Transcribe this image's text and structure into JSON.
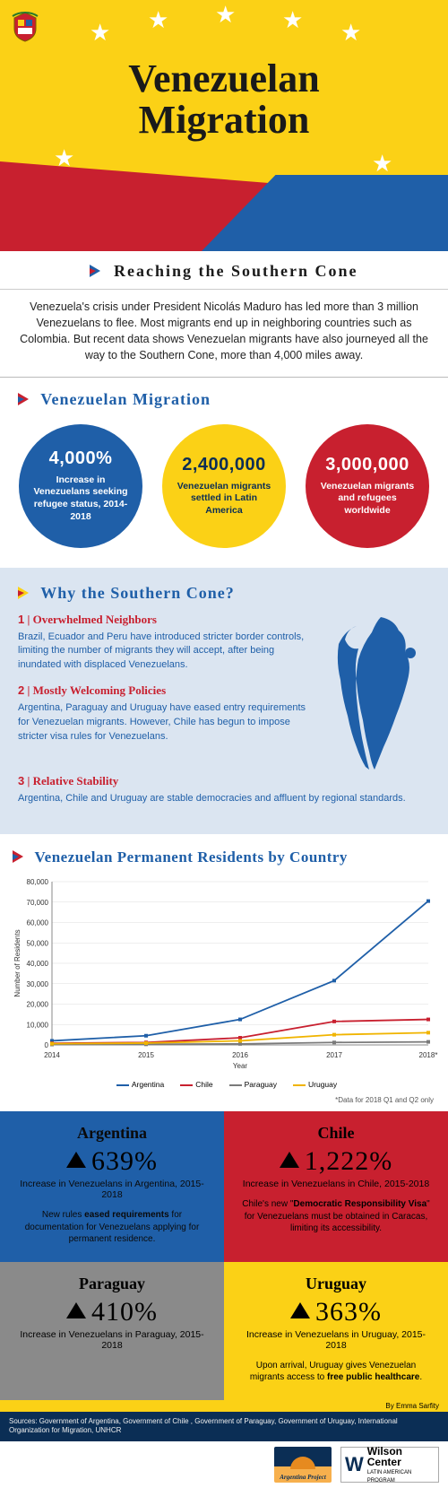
{
  "header": {
    "title_line1": "Venezuelan",
    "title_line2": "Migration",
    "subtitle": "Reaching the Southern Cone"
  },
  "intro": "Venezuela's crisis under President Nicolás Maduro has led more than 3 million Venezuelans to flee. Most migrants end up in neighboring countries such as Colombia. But recent data shows Venezuelan migrants have also journeyed all the way to the Southern Cone, more than 4,000 miles away.",
  "migration_section_title": "Venezuelan Migration",
  "circles": [
    {
      "value": "4,000%",
      "label": "Increase in Venezuelans seeking refugee status, 2014-2018",
      "bg": "#1f5fa8",
      "fg": "#ffffff"
    },
    {
      "value": "2,400,000",
      "label": "Venezuelan migrants settled in Latin America",
      "bg": "#fbd116",
      "fg": "#0b2e55"
    },
    {
      "value": "3,000,000",
      "label": "Venezuelan migrants and refugees worldwide",
      "bg": "#c8202f",
      "fg": "#ffffff"
    }
  ],
  "why": {
    "title": "Why the Southern Cone?",
    "items": [
      {
        "num": "1",
        "title": "Overwhelmed Neighbors",
        "body": "Brazil, Ecuador and Peru have introduced stricter border controls, limiting the number of migrants they will accept, after being inundated with displaced Venezuelans."
      },
      {
        "num": "2",
        "title": "Mostly Welcoming Policies",
        "body": "Argentina, Paraguay and Uruguay have eased entry requirements for Venezuelan migrants. However, Chile has begun to impose stricter visa rules for Venezuelans."
      },
      {
        "num": "3",
        "title": "Relative Stability",
        "body": "Argentina, Chile and Uruguay are stable democracies and affluent by regional standards."
      }
    ]
  },
  "chart": {
    "title": "Venezuelan Permanent Residents by Country",
    "ylabel": "Number of Residents",
    "xlabel": "Year",
    "years": [
      "2014",
      "2015",
      "2016",
      "2017",
      "2018*"
    ],
    "yticks": [
      0,
      10000,
      20000,
      30000,
      40000,
      50000,
      60000,
      70000,
      80000
    ],
    "ytick_labels": [
      "0",
      "10,000",
      "20,000",
      "30,000",
      "40,000",
      "50,000",
      "60,000",
      "70,000",
      "80,000"
    ],
    "series": [
      {
        "name": "Argentina",
        "color": "#1f5fa8",
        "values": [
          2000,
          4500,
          12500,
          31500,
          70500
        ]
      },
      {
        "name": "Chile",
        "color": "#c8202f",
        "values": [
          800,
          1200,
          3500,
          11500,
          12500
        ]
      },
      {
        "name": "Paraguay",
        "color": "#7a7a7a",
        "values": [
          200,
          300,
          500,
          1200,
          1500
        ]
      },
      {
        "name": "Uruguay",
        "color": "#f0b400",
        "values": [
          600,
          900,
          2000,
          5000,
          6000
        ]
      }
    ],
    "note": "*Data for 2018 Q1 and Q2 only",
    "ylim": [
      0,
      80000
    ]
  },
  "countries": {
    "ar": {
      "name": "Argentina",
      "pct": "639%",
      "sub": "Increase in Venezuelans in Argentina, 2015-2018",
      "note": "New rules eased requirements for documentation for Venezuelans applying for permanent residence.",
      "bg": "#1f5fa8"
    },
    "cl": {
      "name": "Chile",
      "pct": "1,222%",
      "sub": "Increase in Venezuelans in Chile, 2015-2018",
      "note": "Chile's new \"Democratic Responsibility Visa\" for Venezuelans must be obtained in Caracas, limiting its accessibility.",
      "bg": "#c8202f"
    },
    "py": {
      "name": "Paraguay",
      "pct": "410%",
      "sub": "Increase in Venezuelans in Paraguay, 2015-2018",
      "note": "",
      "bg": "#8a8a8a"
    },
    "uy": {
      "name": "Uruguay",
      "pct": "363%",
      "sub": "Increase in Venezuelans in Uruguay, 2015-2018",
      "note": "Upon arrival, Uruguay gives Venezuelan migrants access to free public healthcare.",
      "bg": "#fbd116"
    }
  },
  "byline": "By Emma Sarfity",
  "sources": "Sources: Government of Argentina, Government of Chile , Government of Paraguay, Government of Uruguay, International Organization for Migration, UNHCR",
  "logos": {
    "argentina_project": "Argentina Project",
    "wilson": "Wilson Center",
    "wilson_sub": "LATIN AMERICAN PROGRAM"
  },
  "colors": {
    "blue": "#1f5fa8",
    "red": "#c8202f",
    "yellow": "#fbd116",
    "navy": "#0b2e55",
    "gray": "#8a8a8a"
  }
}
